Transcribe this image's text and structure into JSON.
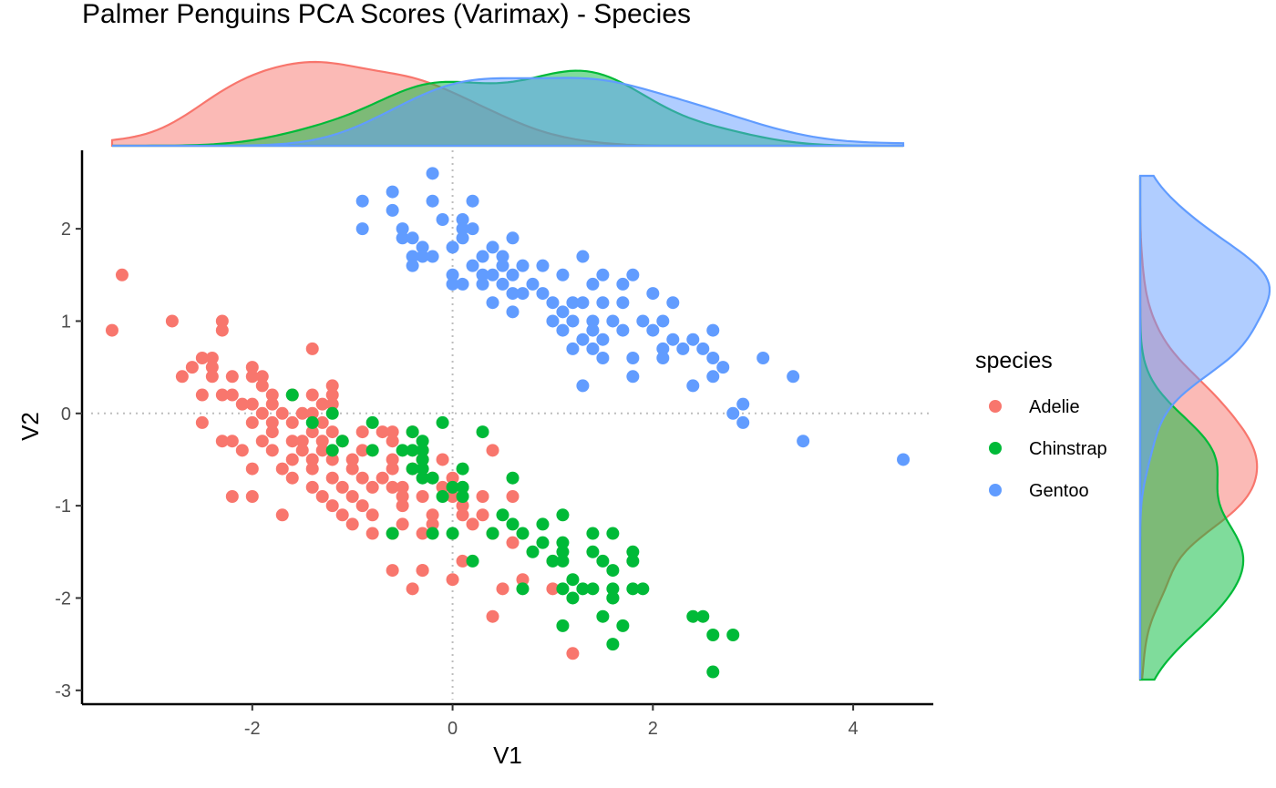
{
  "chart_data": {
    "type": "scatter",
    "title": "Palmer Penguins PCA Scores (Varimax) - Species",
    "xlabel": "V1",
    "ylabel": "V2",
    "xlim": [
      -3.7,
      4.8
    ],
    "ylim": [
      -3.15,
      2.85
    ],
    "x_ticks": [
      -2,
      0,
      2,
      4
    ],
    "y_ticks": [
      -3,
      -2,
      -1,
      0,
      1,
      2
    ],
    "x_tick_labels": [
      "-2",
      "0",
      "2",
      "4"
    ],
    "y_tick_labels": [
      "-3",
      "-2",
      "-1",
      "0",
      "1",
      "2"
    ],
    "reference_lines": {
      "x": 0,
      "y": 0,
      "style": "dotted"
    },
    "grid": false,
    "marginal_densities": {
      "top": true,
      "right": true
    },
    "legend": {
      "title": "species",
      "placement": "right"
    },
    "series": [
      {
        "name": "Adelie",
        "color": "#F8766D",
        "points": [
          [
            -3.3,
            1.5
          ],
          [
            -3.4,
            0.9
          ],
          [
            -2.8,
            1.0
          ],
          [
            -2.3,
            1.0
          ],
          [
            -2.3,
            0.9
          ],
          [
            -1.4,
            0.7
          ],
          [
            -2.5,
            0.6
          ],
          [
            -2.4,
            0.6
          ],
          [
            -2.6,
            0.5
          ],
          [
            -2.0,
            0.5
          ],
          [
            -2.4,
            0.5
          ],
          [
            -2.2,
            0.4
          ],
          [
            -2.4,
            0.4
          ],
          [
            -2.7,
            0.4
          ],
          [
            -1.9,
            0.4
          ],
          [
            -2.0,
            0.4
          ],
          [
            -1.2,
            0.3
          ],
          [
            -2.3,
            0.2
          ],
          [
            -2.2,
            0.2
          ],
          [
            -2.5,
            0.2
          ],
          [
            -1.9,
            0.3
          ],
          [
            -1.8,
            0.2
          ],
          [
            -1.6,
            0.2
          ],
          [
            -1.4,
            0.2
          ],
          [
            -1.2,
            0.2
          ],
          [
            -1.2,
            0.1
          ],
          [
            -2.0,
            0.1
          ],
          [
            -2.1,
            0.1
          ],
          [
            -1.8,
            0.1
          ],
          [
            -1.3,
            0.1
          ],
          [
            -1.9,
            0.0
          ],
          [
            -1.7,
            0.0
          ],
          [
            -1.5,
            0.0
          ],
          [
            -1.4,
            0.0
          ],
          [
            -2.0,
            -0.1
          ],
          [
            -1.8,
            -0.1
          ],
          [
            -1.6,
            -0.1
          ],
          [
            -1.3,
            -0.1
          ],
          [
            -2.5,
            -0.1
          ],
          [
            -1.8,
            -0.2
          ],
          [
            -1.4,
            -0.2
          ],
          [
            -1.2,
            -0.2
          ],
          [
            -0.9,
            -0.2
          ],
          [
            -0.7,
            -0.2
          ],
          [
            -0.4,
            -0.2
          ],
          [
            -0.6,
            -0.2
          ],
          [
            -2.3,
            -0.3
          ],
          [
            -2.2,
            -0.3
          ],
          [
            -1.9,
            -0.3
          ],
          [
            -1.6,
            -0.3
          ],
          [
            -1.5,
            -0.3
          ],
          [
            -1.3,
            -0.3
          ],
          [
            -1.1,
            -0.3
          ],
          [
            -0.6,
            -0.3
          ],
          [
            -1.8,
            -0.4
          ],
          [
            -1.5,
            -0.4
          ],
          [
            -1.3,
            -0.4
          ],
          [
            -0.9,
            -0.4
          ],
          [
            -0.3,
            -0.4
          ],
          [
            0.4,
            -0.4
          ],
          [
            -2.1,
            -0.4
          ],
          [
            -1.6,
            -0.5
          ],
          [
            -1.4,
            -0.5
          ],
          [
            -1.2,
            -0.5
          ],
          [
            -1.0,
            -0.5
          ],
          [
            -0.6,
            -0.5
          ],
          [
            -0.3,
            -0.5
          ],
          [
            -0.1,
            -0.5
          ],
          [
            -1.7,
            -0.6
          ],
          [
            -1.4,
            -0.6
          ],
          [
            -1.0,
            -0.6
          ],
          [
            -0.6,
            -0.6
          ],
          [
            -0.4,
            -0.6
          ],
          [
            -2.0,
            -0.6
          ],
          [
            -1.6,
            -0.7
          ],
          [
            -1.2,
            -0.7
          ],
          [
            -0.9,
            -0.7
          ],
          [
            -0.7,
            -0.7
          ],
          [
            -0.2,
            -0.7
          ],
          [
            0.0,
            -0.7
          ],
          [
            -1.4,
            -0.8
          ],
          [
            -1.1,
            -0.8
          ],
          [
            -0.8,
            -0.8
          ],
          [
            -0.6,
            -0.8
          ],
          [
            -0.5,
            -0.8
          ],
          [
            -0.1,
            -0.8
          ],
          [
            0.1,
            -0.8
          ],
          [
            -1.3,
            -0.9
          ],
          [
            -1.0,
            -0.9
          ],
          [
            -0.5,
            -0.9
          ],
          [
            -0.3,
            -0.9
          ],
          [
            0.0,
            -0.9
          ],
          [
            -2.2,
            -0.9
          ],
          [
            -2.0,
            -0.9
          ],
          [
            -1.2,
            -1.0
          ],
          [
            -0.9,
            -1.0
          ],
          [
            -0.5,
            -1.0
          ],
          [
            0.1,
            -1.0
          ],
          [
            0.3,
            -0.9
          ],
          [
            0.6,
            -0.9
          ],
          [
            -1.7,
            -1.1
          ],
          [
            -1.1,
            -1.1
          ],
          [
            -0.8,
            -1.1
          ],
          [
            -0.2,
            -1.1
          ],
          [
            0.1,
            -1.1
          ],
          [
            0.3,
            -1.1
          ],
          [
            -1.0,
            -1.2
          ],
          [
            -0.5,
            -1.2
          ],
          [
            -0.2,
            -1.2
          ],
          [
            0.2,
            -1.2
          ],
          [
            0.4,
            -1.3
          ],
          [
            -0.8,
            -1.3
          ],
          [
            -0.6,
            -1.3
          ],
          [
            -0.3,
            -1.3
          ],
          [
            0.6,
            -1.4
          ],
          [
            -0.6,
            -1.7
          ],
          [
            -0.3,
            -1.7
          ],
          [
            -0.3,
            -1.7
          ],
          [
            0.1,
            -1.6
          ],
          [
            -0.4,
            -1.9
          ],
          [
            0.0,
            -1.8
          ],
          [
            0.7,
            -1.8
          ],
          [
            0.5,
            -1.9
          ],
          [
            1.0,
            -1.9
          ],
          [
            0.4,
            -2.2
          ],
          [
            1.2,
            -2.6
          ]
        ]
      },
      {
        "name": "Chinstrap",
        "color": "#00BA38",
        "points": [
          [
            -1.6,
            0.2
          ],
          [
            -1.2,
            0.0
          ],
          [
            -1.4,
            -0.1
          ],
          [
            -0.8,
            -0.1
          ],
          [
            -0.4,
            -0.2
          ],
          [
            -0.3,
            -0.3
          ],
          [
            -0.1,
            -0.1
          ],
          [
            0.3,
            -0.2
          ],
          [
            -1.1,
            -0.3
          ],
          [
            -1.2,
            -0.4
          ],
          [
            -0.8,
            -0.4
          ],
          [
            -0.5,
            -0.4
          ],
          [
            -0.4,
            -0.4
          ],
          [
            -0.3,
            -0.4
          ],
          [
            -0.3,
            -0.5
          ],
          [
            -0.3,
            -0.6
          ],
          [
            -0.4,
            -0.6
          ],
          [
            -0.2,
            -0.7
          ],
          [
            -0.3,
            -0.7
          ],
          [
            0.1,
            -0.6
          ],
          [
            0.0,
            -0.8
          ],
          [
            -0.1,
            -0.9
          ],
          [
            0.1,
            -0.9
          ],
          [
            0.6,
            -0.7
          ],
          [
            0.1,
            -0.8
          ],
          [
            0.5,
            -1.1
          ],
          [
            0.6,
            -1.2
          ],
          [
            0.4,
            -1.3
          ],
          [
            0.7,
            -1.3
          ],
          [
            0.9,
            -1.2
          ],
          [
            1.1,
            -1.1
          ],
          [
            1.4,
            -1.3
          ],
          [
            1.6,
            -1.3
          ],
          [
            0.9,
            -1.4
          ],
          [
            1.1,
            -1.4
          ],
          [
            1.1,
            -1.5
          ],
          [
            1.4,
            -1.5
          ],
          [
            1.5,
            -1.6
          ],
          [
            1.6,
            -1.7
          ],
          [
            1.8,
            -1.5
          ],
          [
            1.8,
            -1.6
          ],
          [
            0.8,
            -1.5
          ],
          [
            -0.6,
            -1.3
          ],
          [
            -0.2,
            -1.3
          ],
          [
            0.0,
            -1.3
          ],
          [
            0.2,
            -1.6
          ],
          [
            1.0,
            -1.6
          ],
          [
            1.1,
            -1.6
          ],
          [
            1.2,
            -1.8
          ],
          [
            1.1,
            -1.9
          ],
          [
            1.3,
            -1.9
          ],
          [
            1.4,
            -1.9
          ],
          [
            1.6,
            -1.9
          ],
          [
            1.8,
            -1.9
          ],
          [
            1.9,
            -1.9
          ],
          [
            1.6,
            -2.0
          ],
          [
            1.2,
            -2.0
          ],
          [
            1.6,
            -2.0
          ],
          [
            0.7,
            -1.9
          ],
          [
            1.1,
            -2.3
          ],
          [
            1.5,
            -2.2
          ],
          [
            1.7,
            -2.3
          ],
          [
            1.6,
            -2.5
          ],
          [
            2.4,
            -2.2
          ],
          [
            2.5,
            -2.2
          ],
          [
            2.6,
            -2.4
          ],
          [
            2.8,
            -2.4
          ],
          [
            2.6,
            -2.8
          ]
        ]
      },
      {
        "name": "Gentoo",
        "color": "#619CFF",
        "points": [
          [
            -0.2,
            2.6
          ],
          [
            -0.6,
            2.4
          ],
          [
            -0.9,
            2.3
          ],
          [
            -0.6,
            2.2
          ],
          [
            -0.2,
            2.3
          ],
          [
            0.2,
            2.3
          ],
          [
            0.1,
            2.1
          ],
          [
            -0.1,
            2.1
          ],
          [
            -0.9,
            2.0
          ],
          [
            -0.5,
            2.0
          ],
          [
            0.2,
            2.0
          ],
          [
            0.1,
            1.9
          ],
          [
            0.1,
            2.0
          ],
          [
            0.4,
            1.8
          ],
          [
            0.6,
            1.9
          ],
          [
            -0.5,
            1.9
          ],
          [
            -0.4,
            1.9
          ],
          [
            -0.3,
            1.8
          ],
          [
            0.0,
            1.8
          ],
          [
            0.3,
            1.7
          ],
          [
            0.5,
            1.7
          ],
          [
            1.3,
            1.7
          ],
          [
            -0.4,
            1.7
          ],
          [
            -0.3,
            1.7
          ],
          [
            -0.2,
            1.7
          ],
          [
            0.2,
            1.6
          ],
          [
            0.5,
            1.6
          ],
          [
            0.7,
            1.6
          ],
          [
            0.9,
            1.6
          ],
          [
            1.1,
            1.5
          ],
          [
            1.5,
            1.5
          ],
          [
            1.8,
            1.5
          ],
          [
            -0.4,
            1.6
          ],
          [
            0.0,
            1.5
          ],
          [
            0.3,
            1.5
          ],
          [
            0.4,
            1.5
          ],
          [
            0.6,
            1.5
          ],
          [
            0.8,
            1.4
          ],
          [
            1.4,
            1.4
          ],
          [
            1.7,
            1.4
          ],
          [
            2.0,
            1.3
          ],
          [
            0.3,
            1.4
          ],
          [
            0.5,
            1.4
          ],
          [
            0.6,
            1.3
          ],
          [
            0.9,
            1.3
          ],
          [
            1.2,
            1.2
          ],
          [
            1.3,
            1.2
          ],
          [
            1.5,
            1.2
          ],
          [
            1.7,
            1.2
          ],
          [
            2.2,
            1.2
          ],
          [
            0.0,
            1.4
          ],
          [
            0.1,
            1.4
          ],
          [
            0.7,
            1.3
          ],
          [
            1.0,
            1.2
          ],
          [
            1.1,
            1.1
          ],
          [
            1.2,
            1.0
          ],
          [
            1.4,
            1.0
          ],
          [
            1.6,
            1.0
          ],
          [
            1.9,
            1.0
          ],
          [
            2.1,
            1.0
          ],
          [
            0.4,
            1.2
          ],
          [
            0.6,
            1.1
          ],
          [
            1.0,
            1.0
          ],
          [
            1.1,
            0.9
          ],
          [
            1.4,
            0.9
          ],
          [
            1.7,
            0.9
          ],
          [
            2.0,
            0.9
          ],
          [
            2.2,
            0.8
          ],
          [
            2.4,
            0.8
          ],
          [
            2.6,
            0.9
          ],
          [
            1.3,
            0.8
          ],
          [
            1.5,
            0.8
          ],
          [
            2.1,
            0.7
          ],
          [
            2.3,
            0.7
          ],
          [
            2.5,
            0.7
          ],
          [
            2.6,
            0.6
          ],
          [
            1.4,
            0.7
          ],
          [
            1.2,
            0.7
          ],
          [
            1.5,
            0.6
          ],
          [
            1.8,
            0.6
          ],
          [
            2.1,
            0.6
          ],
          [
            2.7,
            0.5
          ],
          [
            1.8,
            0.4
          ],
          [
            2.6,
            0.4
          ],
          [
            3.1,
            0.6
          ],
          [
            3.4,
            0.4
          ],
          [
            1.3,
            0.3
          ],
          [
            2.4,
            0.3
          ],
          [
            2.9,
            0.1
          ],
          [
            2.8,
            0.0
          ],
          [
            2.9,
            -0.1
          ],
          [
            3.5,
            -0.3
          ],
          [
            4.5,
            -0.5
          ]
        ]
      }
    ]
  }
}
